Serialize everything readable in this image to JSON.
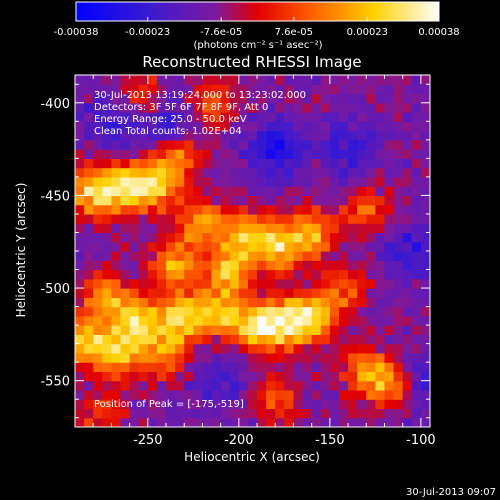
{
  "colorbar": {
    "tick_labels": [
      "-0.00038",
      "-0.00023",
      "-7.6e-05",
      "7.6e-05",
      "0.00023",
      "0.00038"
    ],
    "tick_values": [
      -0.00038,
      -0.00023,
      -7.6e-05,
      7.6e-05,
      0.00023,
      0.00038
    ],
    "range": [
      -0.00038,
      0.00038
    ],
    "units_label": "(photons cm⁻² s⁻¹ asec⁻²)",
    "colormap": "blue-purple-red-yellow-white"
  },
  "info": {
    "time_range": "30-Jul-2013 13:19:24.000 to 13:23:02.000",
    "detectors": "Detectors: 3F 5F 6F 7F 8F 9F, Att 0",
    "energy": "Energy Range: 25.0 - 50.0 keV",
    "clean": "Clean     Total counts: 1.02E+04",
    "peak": "Position of Peak = [-175,-519]"
  },
  "footer": {
    "timestamp": "30-Jul-2013 09:07"
  },
  "chart_data": {
    "type": "heatmap",
    "title": "Reconstructed RHESSI Image",
    "xlabel": "Heliocentric X (arcsec)",
    "ylabel": "Heliocentric Y (arcsec)",
    "xlim": [
      -290,
      -95
    ],
    "ylim": [
      -575,
      -385
    ],
    "x_ticks": [
      -250,
      -200,
      -150,
      -100
    ],
    "y_ticks": [
      -400,
      -450,
      -500,
      -550
    ],
    "x_tick_labels": [
      "-250",
      "-200",
      "-150",
      "-100"
    ],
    "y_tick_labels": [
      "-400",
      "-450",
      "-500",
      "-550"
    ],
    "peak_position": [
      -175,
      -519
    ],
    "bright_regions": [
      {
        "x": -280,
        "y": -448,
        "level": 0.85
      },
      {
        "x": -262,
        "y": -445,
        "level": 0.9
      },
      {
        "x": -245,
        "y": -445,
        "level": 0.75
      },
      {
        "x": -235,
        "y": -430,
        "level": 0.6
      },
      {
        "x": -220,
        "y": -465,
        "level": 0.7
      },
      {
        "x": -195,
        "y": -470,
        "level": 0.7
      },
      {
        "x": -178,
        "y": -478,
        "level": 0.8
      },
      {
        "x": -160,
        "y": -470,
        "level": 0.7
      },
      {
        "x": -235,
        "y": -488,
        "level": 0.75
      },
      {
        "x": -205,
        "y": -490,
        "level": 0.8
      },
      {
        "x": -272,
        "y": -505,
        "level": 0.7
      },
      {
        "x": -255,
        "y": -518,
        "level": 0.85
      },
      {
        "x": -232,
        "y": -515,
        "level": 0.8
      },
      {
        "x": -212,
        "y": -513,
        "level": 0.75
      },
      {
        "x": -192,
        "y": -520,
        "level": 0.8
      },
      {
        "x": -175,
        "y": -519,
        "level": 1.0
      },
      {
        "x": -158,
        "y": -515,
        "level": 0.85
      },
      {
        "x": -285,
        "y": -528,
        "level": 0.85
      },
      {
        "x": -265,
        "y": -535,
        "level": 0.75
      },
      {
        "x": -240,
        "y": -535,
        "level": 0.6
      },
      {
        "x": -130,
        "y": -545,
        "level": 0.65
      },
      {
        "x": -115,
        "y": -552,
        "level": 0.6
      },
      {
        "x": -142,
        "y": -500,
        "level": 0.45
      },
      {
        "x": -130,
        "y": -458,
        "level": 0.5
      },
      {
        "x": -252,
        "y": -395,
        "level": 0.45
      },
      {
        "x": -215,
        "y": -400,
        "level": 0.45
      },
      {
        "x": -275,
        "y": -568,
        "level": 0.4
      },
      {
        "x": -180,
        "y": -560,
        "level": 0.45
      }
    ],
    "dark_regions": [
      {
        "x": -240,
        "y": -410,
        "level": 0.7
      },
      {
        "x": -180,
        "y": -425,
        "level": 0.8
      },
      {
        "x": -140,
        "y": -425,
        "level": 0.6
      },
      {
        "x": -105,
        "y": -480,
        "level": 0.6
      },
      {
        "x": -100,
        "y": -550,
        "level": 0.6
      },
      {
        "x": -210,
        "y": -550,
        "level": 0.5
      },
      {
        "x": -270,
        "y": -410,
        "level": 0.5
      }
    ]
  }
}
